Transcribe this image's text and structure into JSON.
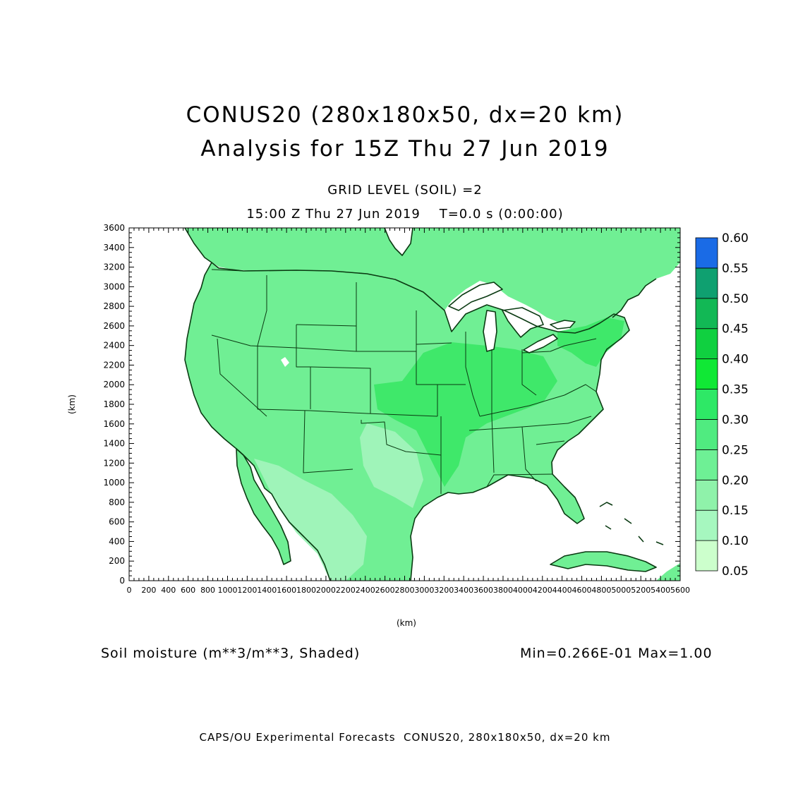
{
  "title": {
    "line1": "CONUS20 (280x180x50, dx=20 km)",
    "line2": "Analysis for 15Z Thu 27 Jun 2019"
  },
  "subtitle": {
    "grid_level": "GRID LEVEL (SOIL) =2",
    "time": "15:00 Z Thu 27 Jun 2019    T=0.0 s (0:00:00)"
  },
  "axes": {
    "x_label": "(km)",
    "y_label": "(km)",
    "x_ticks": [
      "0",
      "200",
      "400",
      "600",
      "800",
      "1000",
      "1200",
      "1400",
      "1600",
      "1800",
      "2000",
      "2200",
      "2400",
      "2600",
      "2800",
      "3000",
      "3200",
      "3400",
      "3600",
      "3800",
      "4000",
      "4200",
      "4400",
      "4600",
      "4800",
      "5000",
      "5200",
      "5400",
      "5600"
    ],
    "y_ticks": [
      "0",
      "200",
      "400",
      "600",
      "800",
      "1000",
      "1200",
      "1400",
      "1600",
      "1800",
      "2000",
      "2200",
      "2400",
      "2600",
      "2800",
      "3000",
      "3200",
      "3400",
      "3600"
    ],
    "x_range": [
      0,
      5600
    ],
    "y_range": [
      0,
      3600
    ]
  },
  "colorbar": {
    "levels": [
      "0.05",
      "0.10",
      "0.15",
      "0.20",
      "0.25",
      "0.30",
      "0.35",
      "0.40",
      "0.45",
      "0.50",
      "0.55",
      "0.60"
    ],
    "colors": [
      "#ccffcc",
      "#a6f7bf",
      "#8ff2aa",
      "#6ef095",
      "#50eb80",
      "#2ee866",
      "#10e835",
      "#10d040",
      "#12b855",
      "#0fa070",
      "#0c9090",
      "#1a6be6"
    ]
  },
  "field_label": "Soil moisture (m**3/m**3, Shaded)",
  "minmax": "Min=0.266E-01 Max=1.00",
  "footer": "CAPS/OU Experimental Forecasts  CONUS20, 280x180x50, dx=20 km",
  "map_colors": {
    "land": "#70ef94",
    "land_wet": "#3fe86a",
    "land_dry": "#9ff4b9",
    "water": "#ffffff",
    "border": "#0a3a12"
  }
}
